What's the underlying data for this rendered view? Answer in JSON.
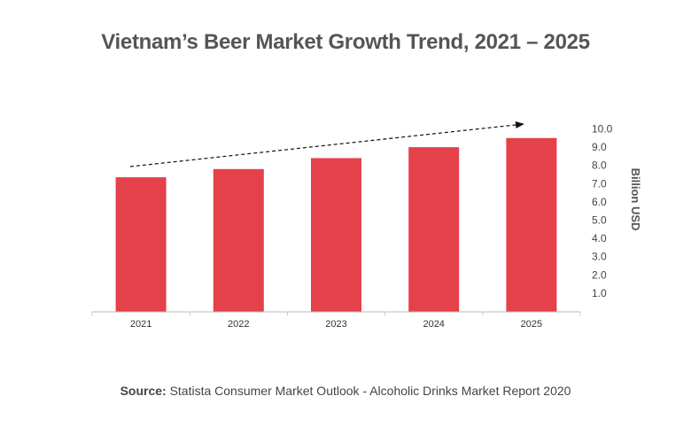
{
  "chart_data": {
    "type": "bar",
    "title": "Vietnam’s Beer Market Growth Trend, 2021 – 2025",
    "categories": [
      "2021",
      "2022",
      "2023",
      "2024",
      "2025"
    ],
    "values": [
      7.35,
      7.8,
      8.4,
      9.0,
      9.5
    ],
    "ylabel": "Billion USD",
    "xlabel": "",
    "ylim": [
      0,
      10
    ],
    "yticks": [
      "1.0",
      "2.0",
      "3.0",
      "4.0",
      "5.0",
      "6.0",
      "7.0",
      "8.0",
      "9.0",
      "10.0"
    ],
    "y_axis_position": "right",
    "grid": false,
    "annotation": "dashed upward trend arrow",
    "colors": {
      "bar": "#e5414a",
      "text": "#555555"
    }
  },
  "source": {
    "label": "Source:",
    "text": " Statista Consumer Market Outlook - Alcoholic Drinks Market Report 2020"
  }
}
